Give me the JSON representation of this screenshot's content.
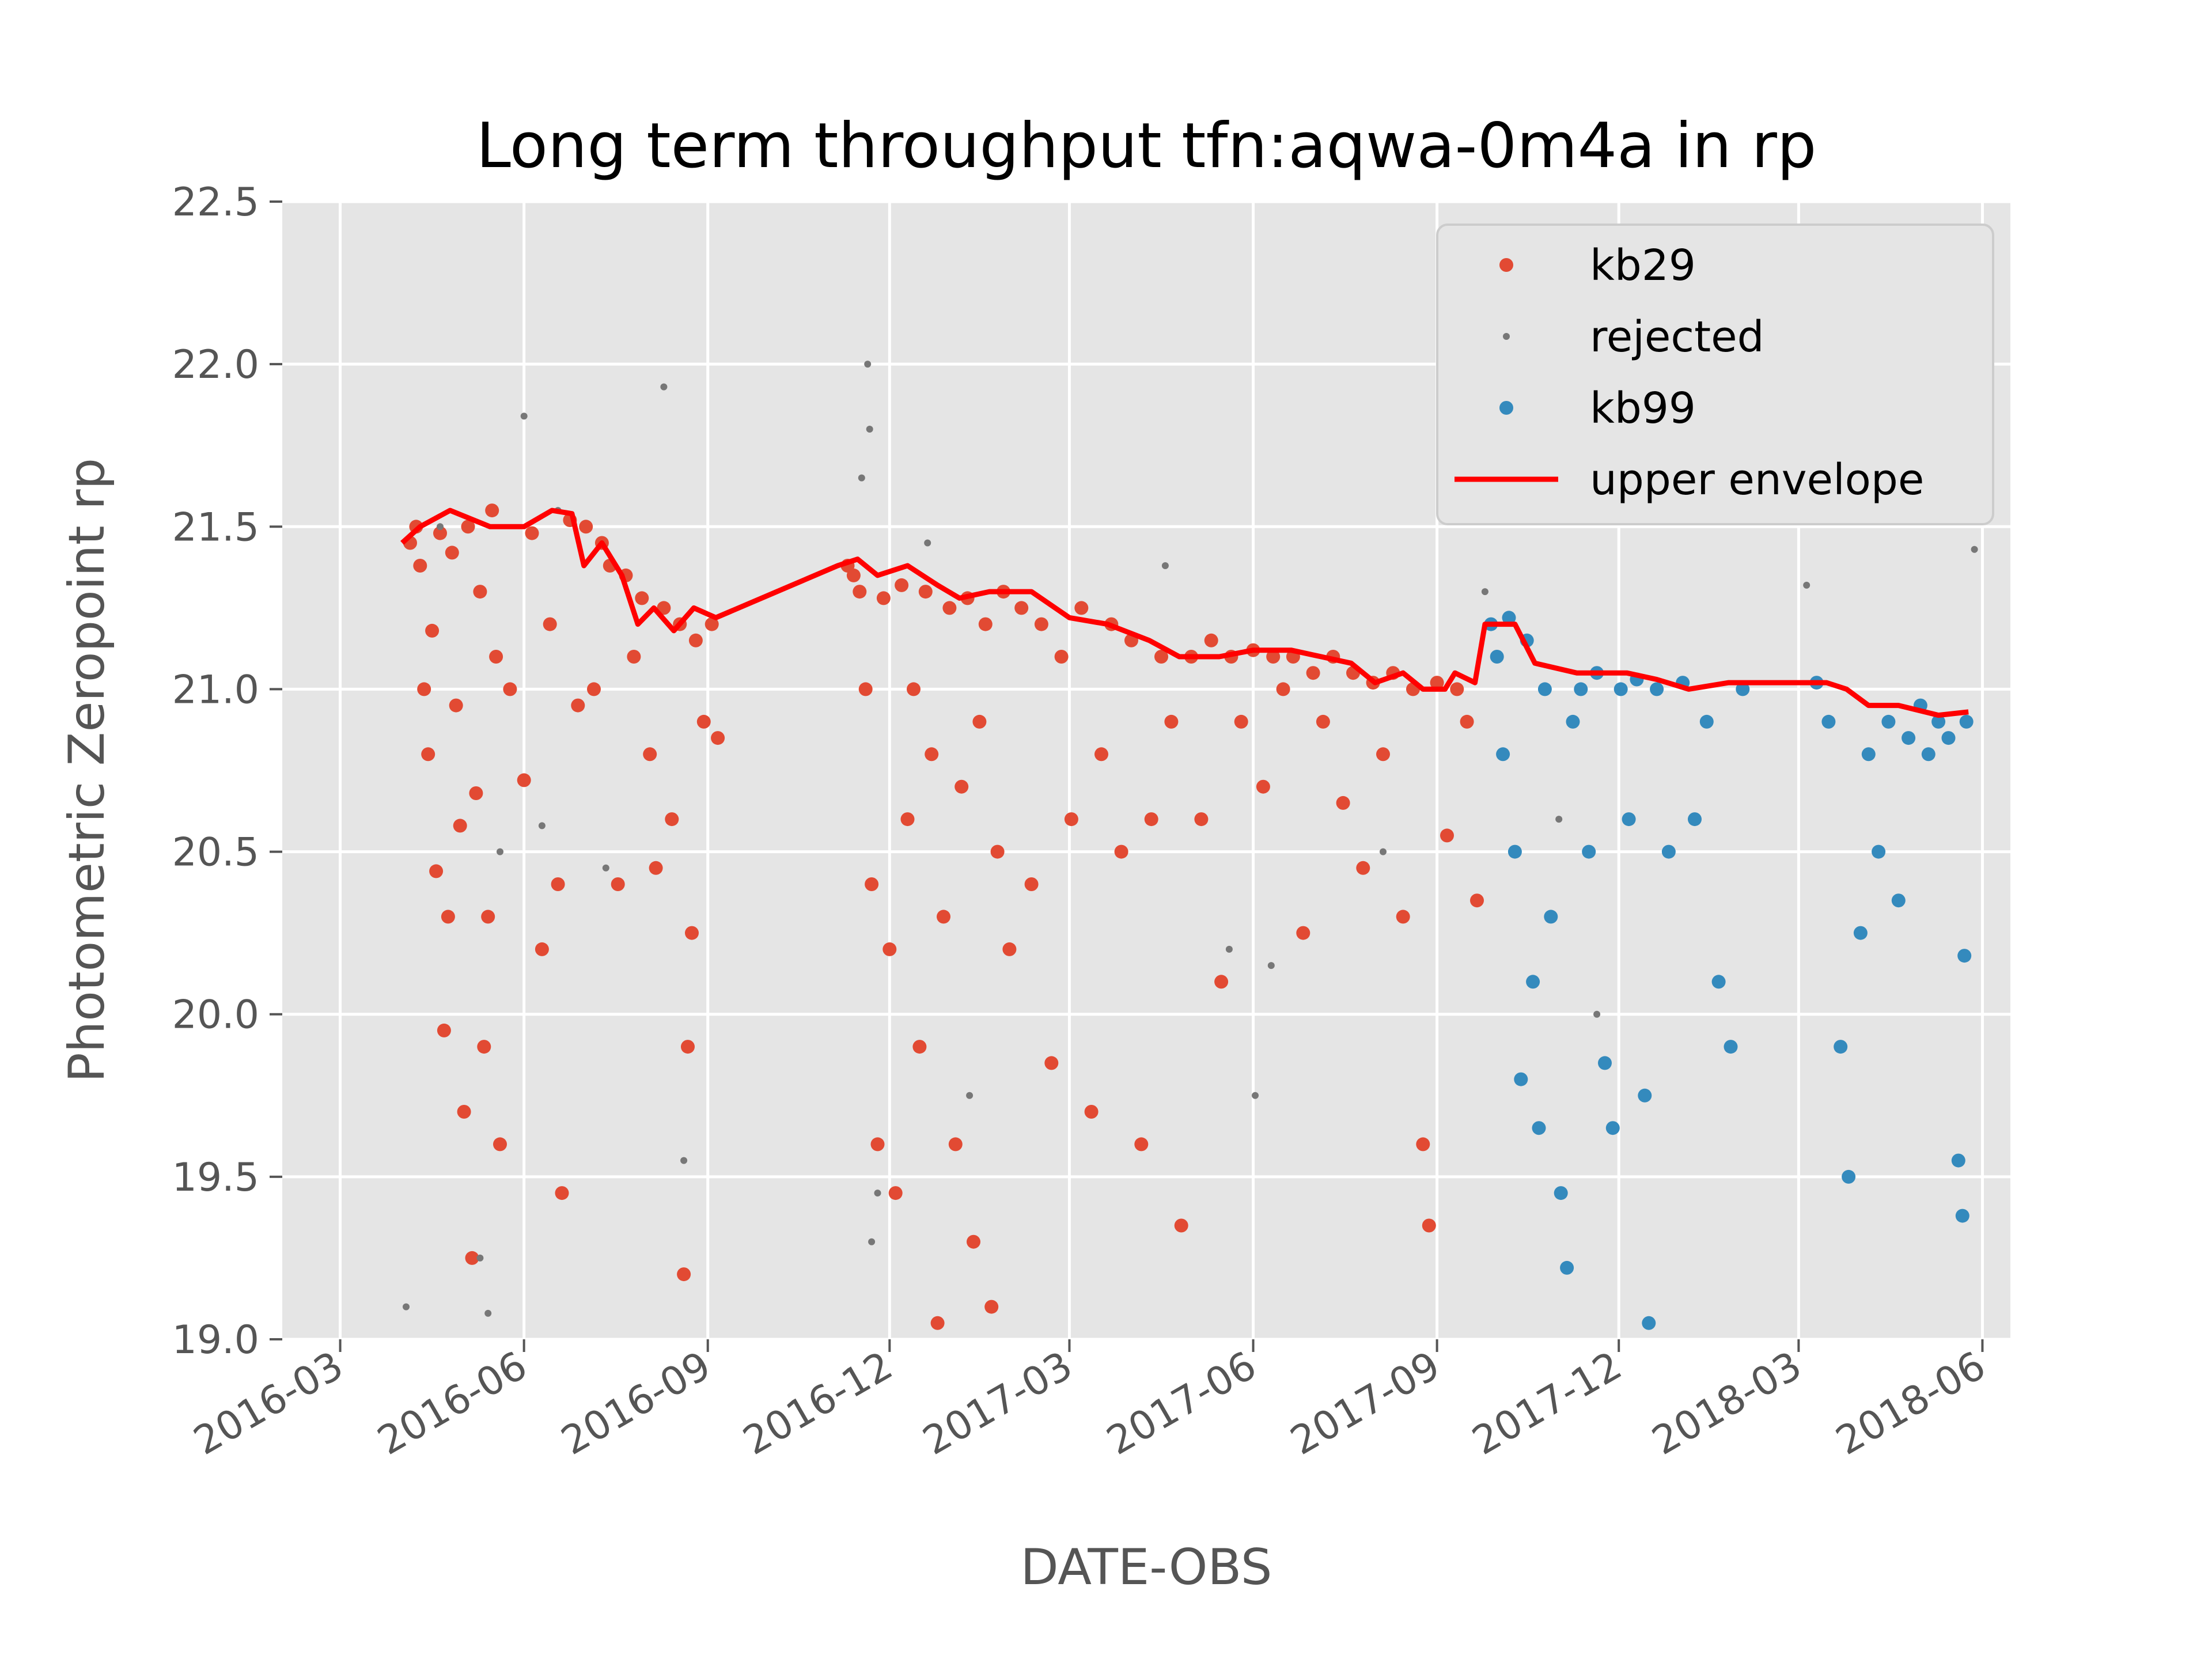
{
  "chart_data": {
    "type": "scatter",
    "title": "Long term throughput  tfn:aqwa-0m4a in rp",
    "xlabel": "DATE-OBS",
    "ylabel": "Photometric Zeropoint rp",
    "xlim": [
      "2016-02-01",
      "2018-06-15"
    ],
    "ylim": [
      19.0,
      22.5
    ],
    "x_ticks": [
      "2016-03",
      "2016-06",
      "2016-09",
      "2016-12",
      "2017-03",
      "2017-06",
      "2017-09",
      "2017-12",
      "2018-03",
      "2018-06"
    ],
    "y_ticks": [
      "19.0",
      "19.5",
      "20.0",
      "20.5",
      "21.0",
      "21.5",
      "22.0",
      "22.5"
    ],
    "grid": true,
    "legend_position": "upper right",
    "colors": {
      "kb29": "#E24A33",
      "rejected": "#777777",
      "kb99": "#348ABD",
      "upper_envelope": "#FF0000",
      "background": "#E5E5E5"
    },
    "legend": [
      "kb29",
      "rejected",
      "kb99",
      "upper envelope"
    ],
    "series": [
      {
        "name": "kb29",
        "marker": "dot",
        "points": [
          [
            "2016-04-05",
            21.45
          ],
          [
            "2016-04-08",
            21.5
          ],
          [
            "2016-04-10",
            21.38
          ],
          [
            "2016-04-12",
            21.0
          ],
          [
            "2016-04-14",
            20.8
          ],
          [
            "2016-04-16",
            21.18
          ],
          [
            "2016-04-18",
            20.44
          ],
          [
            "2016-04-20",
            21.48
          ],
          [
            "2016-04-22",
            19.95
          ],
          [
            "2016-04-24",
            20.3
          ],
          [
            "2016-04-26",
            21.42
          ],
          [
            "2016-04-28",
            20.95
          ],
          [
            "2016-04-30",
            20.58
          ],
          [
            "2016-05-02",
            19.7
          ],
          [
            "2016-05-04",
            21.5
          ],
          [
            "2016-05-06",
            19.25
          ],
          [
            "2016-05-08",
            20.68
          ],
          [
            "2016-05-10",
            21.3
          ],
          [
            "2016-05-12",
            19.9
          ],
          [
            "2016-05-14",
            20.3
          ],
          [
            "2016-05-16",
            21.55
          ],
          [
            "2016-05-18",
            21.1
          ],
          [
            "2016-05-20",
            19.6
          ],
          [
            "2016-05-25",
            21.0
          ],
          [
            "2016-06-01",
            20.72
          ],
          [
            "2016-06-05",
            21.48
          ],
          [
            "2016-06-10",
            20.2
          ],
          [
            "2016-06-14",
            21.2
          ],
          [
            "2016-06-18",
            20.4
          ],
          [
            "2016-06-20",
            19.45
          ],
          [
            "2016-06-24",
            21.52
          ],
          [
            "2016-06-28",
            20.95
          ],
          [
            "2016-07-02",
            21.5
          ],
          [
            "2016-07-06",
            21.0
          ],
          [
            "2016-07-10",
            21.45
          ],
          [
            "2016-07-14",
            21.38
          ],
          [
            "2016-07-18",
            20.4
          ],
          [
            "2016-07-22",
            21.35
          ],
          [
            "2016-07-26",
            21.1
          ],
          [
            "2016-07-30",
            21.28
          ],
          [
            "2016-08-03",
            20.8
          ],
          [
            "2016-08-06",
            20.45
          ],
          [
            "2016-08-10",
            21.25
          ],
          [
            "2016-08-14",
            20.6
          ],
          [
            "2016-08-18",
            21.2
          ],
          [
            "2016-08-20",
            19.2
          ],
          [
            "2016-08-22",
            19.9
          ],
          [
            "2016-08-24",
            20.25
          ],
          [
            "2016-08-26",
            21.15
          ],
          [
            "2016-08-30",
            20.9
          ],
          [
            "2016-09-03",
            21.2
          ],
          [
            "2016-09-06",
            20.85
          ],
          [
            "2016-11-10",
            21.38
          ],
          [
            "2016-11-13",
            21.35
          ],
          [
            "2016-11-16",
            21.3
          ],
          [
            "2016-11-19",
            21.0
          ],
          [
            "2016-11-22",
            20.4
          ],
          [
            "2016-11-25",
            19.6
          ],
          [
            "2016-11-28",
            21.28
          ],
          [
            "2016-12-01",
            20.2
          ],
          [
            "2016-12-04",
            19.45
          ],
          [
            "2016-12-07",
            21.32
          ],
          [
            "2016-12-10",
            20.6
          ],
          [
            "2016-12-13",
            21.0
          ],
          [
            "2016-12-16",
            19.9
          ],
          [
            "2016-12-19",
            21.3
          ],
          [
            "2016-12-22",
            20.8
          ],
          [
            "2016-12-25",
            19.05
          ],
          [
            "2016-12-28",
            20.3
          ],
          [
            "2016-12-31",
            21.25
          ],
          [
            "2017-01-03",
            19.6
          ],
          [
            "2017-01-06",
            20.7
          ],
          [
            "2017-01-09",
            21.28
          ],
          [
            "2017-01-12",
            19.3
          ],
          [
            "2017-01-15",
            20.9
          ],
          [
            "2017-01-18",
            21.2
          ],
          [
            "2017-01-21",
            19.1
          ],
          [
            "2017-01-24",
            20.5
          ],
          [
            "2017-01-27",
            21.3
          ],
          [
            "2017-01-30",
            20.2
          ],
          [
            "2017-02-05",
            21.25
          ],
          [
            "2017-02-10",
            20.4
          ],
          [
            "2017-02-15",
            21.2
          ],
          [
            "2017-02-20",
            19.85
          ],
          [
            "2017-02-25",
            21.1
          ],
          [
            "2017-03-02",
            20.6
          ],
          [
            "2017-03-07",
            21.25
          ],
          [
            "2017-03-12",
            19.7
          ],
          [
            "2017-03-17",
            20.8
          ],
          [
            "2017-03-22",
            21.2
          ],
          [
            "2017-03-27",
            20.5
          ],
          [
            "2017-04-01",
            21.15
          ],
          [
            "2017-04-06",
            19.6
          ],
          [
            "2017-04-11",
            20.6
          ],
          [
            "2017-04-16",
            21.1
          ],
          [
            "2017-04-21",
            20.9
          ],
          [
            "2017-04-26",
            19.35
          ],
          [
            "2017-05-01",
            21.1
          ],
          [
            "2017-05-06",
            20.6
          ],
          [
            "2017-05-11",
            21.15
          ],
          [
            "2017-05-16",
            20.1
          ],
          [
            "2017-05-21",
            21.1
          ],
          [
            "2017-05-26",
            20.9
          ],
          [
            "2017-06-01",
            21.12
          ],
          [
            "2017-06-06",
            20.7
          ],
          [
            "2017-06-11",
            21.1
          ],
          [
            "2017-06-16",
            21.0
          ],
          [
            "2017-06-21",
            21.1
          ],
          [
            "2017-06-26",
            20.25
          ],
          [
            "2017-07-01",
            21.05
          ],
          [
            "2017-07-06",
            20.9
          ],
          [
            "2017-07-11",
            21.1
          ],
          [
            "2017-07-16",
            20.65
          ],
          [
            "2017-07-21",
            21.05
          ],
          [
            "2017-07-26",
            20.45
          ],
          [
            "2017-07-31",
            21.02
          ],
          [
            "2017-08-05",
            20.8
          ],
          [
            "2017-08-10",
            21.05
          ],
          [
            "2017-08-15",
            20.3
          ],
          [
            "2017-08-20",
            21.0
          ],
          [
            "2017-08-25",
            19.6
          ],
          [
            "2017-08-28",
            19.35
          ],
          [
            "2017-09-01",
            21.02
          ],
          [
            "2017-09-06",
            20.55
          ],
          [
            "2017-09-11",
            21.0
          ],
          [
            "2017-09-16",
            20.9
          ],
          [
            "2017-09-21",
            20.35
          ]
        ]
      },
      {
        "name": "rejected",
        "marker": "small-dot",
        "points": [
          [
            "2016-04-03",
            19.1
          ],
          [
            "2016-04-20",
            21.5
          ],
          [
            "2016-05-10",
            19.25
          ],
          [
            "2016-05-14",
            19.08
          ],
          [
            "2016-05-20",
            20.5
          ],
          [
            "2016-06-01",
            21.84
          ],
          [
            "2016-06-10",
            20.58
          ],
          [
            "2016-06-18",
            21.55
          ],
          [
            "2016-07-12",
            20.45
          ],
          [
            "2016-08-10",
            21.93
          ],
          [
            "2016-08-20",
            19.55
          ],
          [
            "2016-11-20",
            22.0
          ],
          [
            "2016-11-21",
            21.8
          ],
          [
            "2016-11-17",
            21.65
          ],
          [
            "2016-11-22",
            19.3
          ],
          [
            "2016-11-25",
            19.45
          ],
          [
            "2016-12-20",
            21.45
          ],
          [
            "2017-01-10",
            19.75
          ],
          [
            "2017-04-18",
            21.38
          ],
          [
            "2017-05-20",
            20.2
          ],
          [
            "2017-06-02",
            19.75
          ],
          [
            "2017-06-10",
            20.15
          ],
          [
            "2017-08-05",
            20.5
          ],
          [
            "2017-09-15",
            21.55
          ],
          [
            "2017-09-25",
            21.3
          ],
          [
            "2017-10-10",
            21.55
          ],
          [
            "2017-11-01",
            20.6
          ],
          [
            "2017-11-20",
            20.0
          ],
          [
            "2018-03-05",
            21.32
          ],
          [
            "2018-05-28",
            21.43
          ]
        ]
      },
      {
        "name": "kb99",
        "marker": "dot",
        "points": [
          [
            "2017-09-28",
            21.2
          ],
          [
            "2017-10-01",
            21.1
          ],
          [
            "2017-10-04",
            20.8
          ],
          [
            "2017-10-07",
            21.22
          ],
          [
            "2017-10-10",
            20.5
          ],
          [
            "2017-10-13",
            19.8
          ],
          [
            "2017-10-16",
            21.15
          ],
          [
            "2017-10-19",
            20.1
          ],
          [
            "2017-10-22",
            19.65
          ],
          [
            "2017-10-25",
            21.0
          ],
          [
            "2017-10-28",
            20.3
          ],
          [
            "2017-11-02",
            19.45
          ],
          [
            "2017-11-05",
            19.22
          ],
          [
            "2017-11-08",
            20.9
          ],
          [
            "2017-11-12",
            21.0
          ],
          [
            "2017-11-16",
            20.5
          ],
          [
            "2017-11-20",
            21.05
          ],
          [
            "2017-11-24",
            19.85
          ],
          [
            "2017-11-28",
            19.65
          ],
          [
            "2017-12-02",
            21.0
          ],
          [
            "2017-12-06",
            20.6
          ],
          [
            "2017-12-10",
            21.03
          ],
          [
            "2017-12-14",
            19.75
          ],
          [
            "2017-12-16",
            19.05
          ],
          [
            "2017-12-20",
            21.0
          ],
          [
            "2017-12-26",
            20.5
          ],
          [
            "2018-01-02",
            21.02
          ],
          [
            "2018-01-08",
            20.6
          ],
          [
            "2018-01-14",
            20.9
          ],
          [
            "2018-01-20",
            20.1
          ],
          [
            "2018-01-26",
            19.9
          ],
          [
            "2018-02-01",
            21.0
          ],
          [
            "2018-03-10",
            21.02
          ],
          [
            "2018-03-16",
            20.9
          ],
          [
            "2018-03-22",
            19.9
          ],
          [
            "2018-03-26",
            19.5
          ],
          [
            "2018-04-01",
            20.25
          ],
          [
            "2018-04-05",
            20.8
          ],
          [
            "2018-04-10",
            20.5
          ],
          [
            "2018-04-15",
            20.9
          ],
          [
            "2018-04-20",
            20.35
          ],
          [
            "2018-04-25",
            20.85
          ],
          [
            "2018-05-01",
            20.95
          ],
          [
            "2018-05-05",
            20.8
          ],
          [
            "2018-05-10",
            20.9
          ],
          [
            "2018-05-15",
            20.85
          ],
          [
            "2018-05-20",
            19.55
          ],
          [
            "2018-05-22",
            19.38
          ],
          [
            "2018-05-23",
            20.18
          ],
          [
            "2018-05-24",
            20.9
          ]
        ]
      },
      {
        "name": "upper envelope",
        "marker": "line",
        "points": [
          [
            "2016-04-01",
            21.45
          ],
          [
            "2016-04-10",
            21.5
          ],
          [
            "2016-04-25",
            21.55
          ],
          [
            "2016-05-15",
            21.5
          ],
          [
            "2016-06-01",
            21.5
          ],
          [
            "2016-06-15",
            21.55
          ],
          [
            "2016-06-25",
            21.54
          ],
          [
            "2016-07-01",
            21.38
          ],
          [
            "2016-07-10",
            21.45
          ],
          [
            "2016-07-20",
            21.35
          ],
          [
            "2016-07-28",
            21.2
          ],
          [
            "2016-08-05",
            21.25
          ],
          [
            "2016-08-15",
            21.18
          ],
          [
            "2016-08-25",
            21.25
          ],
          [
            "2016-09-05",
            21.22
          ],
          [
            "2016-11-05",
            21.38
          ],
          [
            "2016-11-15",
            21.4
          ],
          [
            "2016-11-25",
            21.35
          ],
          [
            "2016-12-10",
            21.38
          ],
          [
            "2016-12-25",
            21.32
          ],
          [
            "2017-01-05",
            21.28
          ],
          [
            "2017-01-20",
            21.3
          ],
          [
            "2017-02-10",
            21.3
          ],
          [
            "2017-03-01",
            21.22
          ],
          [
            "2017-03-20",
            21.2
          ],
          [
            "2017-04-10",
            21.15
          ],
          [
            "2017-04-25",
            21.1
          ],
          [
            "2017-05-15",
            21.1
          ],
          [
            "2017-06-01",
            21.12
          ],
          [
            "2017-06-20",
            21.12
          ],
          [
            "2017-07-05",
            21.1
          ],
          [
            "2017-07-20",
            21.08
          ],
          [
            "2017-08-01",
            21.02
          ],
          [
            "2017-08-15",
            21.05
          ],
          [
            "2017-08-25",
            21.0
          ],
          [
            "2017-09-05",
            21.0
          ],
          [
            "2017-09-10",
            21.05
          ],
          [
            "2017-09-20",
            21.02
          ],
          [
            "2017-09-25",
            21.2
          ],
          [
            "2017-10-10",
            21.2
          ],
          [
            "2017-10-20",
            21.08
          ],
          [
            "2017-11-10",
            21.05
          ],
          [
            "2017-12-05",
            21.05
          ],
          [
            "2017-12-20",
            21.03
          ],
          [
            "2018-01-05",
            21.0
          ],
          [
            "2018-01-25",
            21.02
          ],
          [
            "2018-02-25",
            21.02
          ],
          [
            "2018-03-15",
            21.02
          ],
          [
            "2018-03-25",
            21.0
          ],
          [
            "2018-04-05",
            20.95
          ],
          [
            "2018-04-20",
            20.95
          ],
          [
            "2018-05-10",
            20.92
          ],
          [
            "2018-05-25",
            20.93
          ]
        ]
      }
    ]
  }
}
